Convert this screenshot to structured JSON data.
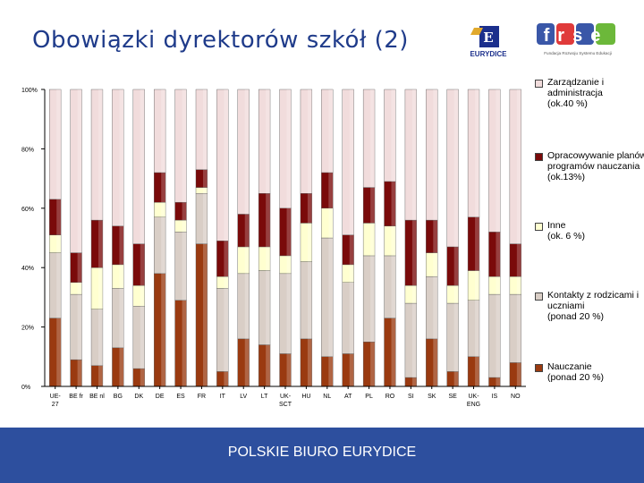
{
  "slide": {
    "title": "Obowiązki dyrektorów szkół (2)",
    "footer": "POLSKIE BIURO EURYDICE"
  },
  "logos": {
    "eurydice_text": "EURYDICE",
    "frse_text": "frse",
    "frse_subtitle": "Fundacja Rozwoju Systemu Edukacji"
  },
  "colors": {
    "teaching": "#9a3a10",
    "contacts": "#d9cec6",
    "other": "#ffffd0",
    "curriculum": "#7a0a0a",
    "administration": "#f1dcdc",
    "footer": "#2d4f9e",
    "title": "#1f3b8a"
  },
  "chart_data": {
    "type": "bar",
    "stacked": true,
    "title": "",
    "xlabel": "",
    "ylabel": "",
    "ylim": [
      0,
      100
    ],
    "y_ticks": [
      "0%",
      "20%",
      "40%",
      "60%",
      "80%",
      "100%"
    ],
    "y_tick_values": [
      0,
      20,
      40,
      60,
      80,
      100
    ],
    "categories": [
      "UE-27",
      "BE fr",
      "BE nl",
      "BG",
      "DK",
      "DE",
      "ES",
      "FR",
      "IT",
      "LV",
      "LT",
      "UK-SCT",
      "HU",
      "NL",
      "AT",
      "PL",
      "RO",
      "SI",
      "SK",
      "SE",
      "UK-ENG",
      "IS",
      "NO"
    ],
    "legend_position": "right",
    "series": [
      {
        "key": "teaching",
        "name": "Nauczanie",
        "note": "(ponad 20 %)",
        "values": [
          23,
          9,
          7,
          13,
          6,
          38,
          29,
          48,
          5,
          16,
          14,
          11,
          16,
          10,
          11,
          15,
          23,
          3,
          16,
          5,
          10,
          3,
          8
        ]
      },
      {
        "key": "contacts",
        "name": "Kontakty z rodzicami i uczniami",
        "note": "(ponad 20 %)",
        "values": [
          22,
          22,
          19,
          20,
          21,
          19,
          23,
          17,
          28,
          22,
          25,
          27,
          26,
          40,
          24,
          29,
          21,
          25,
          21,
          23,
          19,
          28,
          23
        ]
      },
      {
        "key": "other",
        "name": "Inne",
        "note": "(ok. 6 %)",
        "values": [
          6,
          4,
          14,
          8,
          7,
          5,
          4,
          2,
          4,
          9,
          8,
          6,
          13,
          10,
          6,
          11,
          10,
          6,
          8,
          6,
          10,
          6,
          6
        ]
      },
      {
        "key": "curriculum",
        "name": "Opracowywanie planów i programów nauczania",
        "note": "(ok.13%)",
        "values": [
          12,
          10,
          16,
          13,
          14,
          10,
          6,
          6,
          12,
          11,
          18,
          16,
          10,
          12,
          10,
          12,
          15,
          22,
          11,
          13,
          18,
          15,
          11
        ]
      },
      {
        "key": "administration",
        "name": "Zarządzanie i administracja",
        "note": "(ok.40 %)",
        "values": [
          37,
          55,
          44,
          46,
          52,
          28,
          38,
          27,
          51,
          42,
          35,
          40,
          35,
          28,
          49,
          33,
          31,
          44,
          44,
          53,
          43,
          48,
          52
        ]
      }
    ]
  }
}
